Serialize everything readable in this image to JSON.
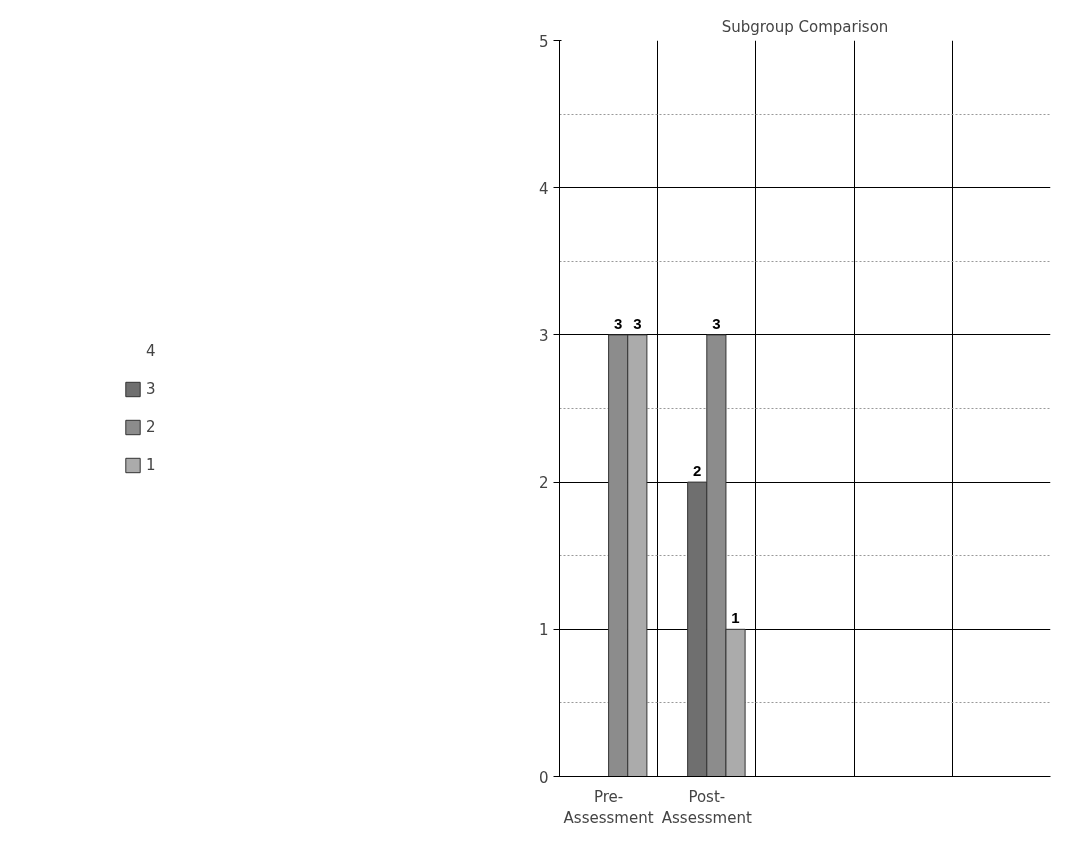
{
  "chart_data": {
    "type": "bar",
    "title": "Subgroup Comparison",
    "categories": [
      "Pre-Assessment",
      "Post-Assessment",
      null,
      null,
      null
    ],
    "series": [
      {
        "name": "4",
        "values": [
          null,
          null,
          null,
          null,
          null
        ]
      },
      {
        "name": "3",
        "color": "#6f6f6f",
        "values": [
          null,
          2,
          null,
          null,
          null
        ]
      },
      {
        "name": "2",
        "color": "#8c8c8c",
        "values": [
          3,
          3,
          null,
          null,
          null
        ]
      },
      {
        "name": "1",
        "color": "#ababab",
        "values": [
          3,
          1,
          null,
          null,
          null
        ]
      }
    ],
    "ylim": [
      0,
      5
    ],
    "yticks": [
      0,
      1,
      2,
      3,
      4,
      5
    ],
    "grid": true,
    "legend": "left",
    "data_labels": true
  }
}
